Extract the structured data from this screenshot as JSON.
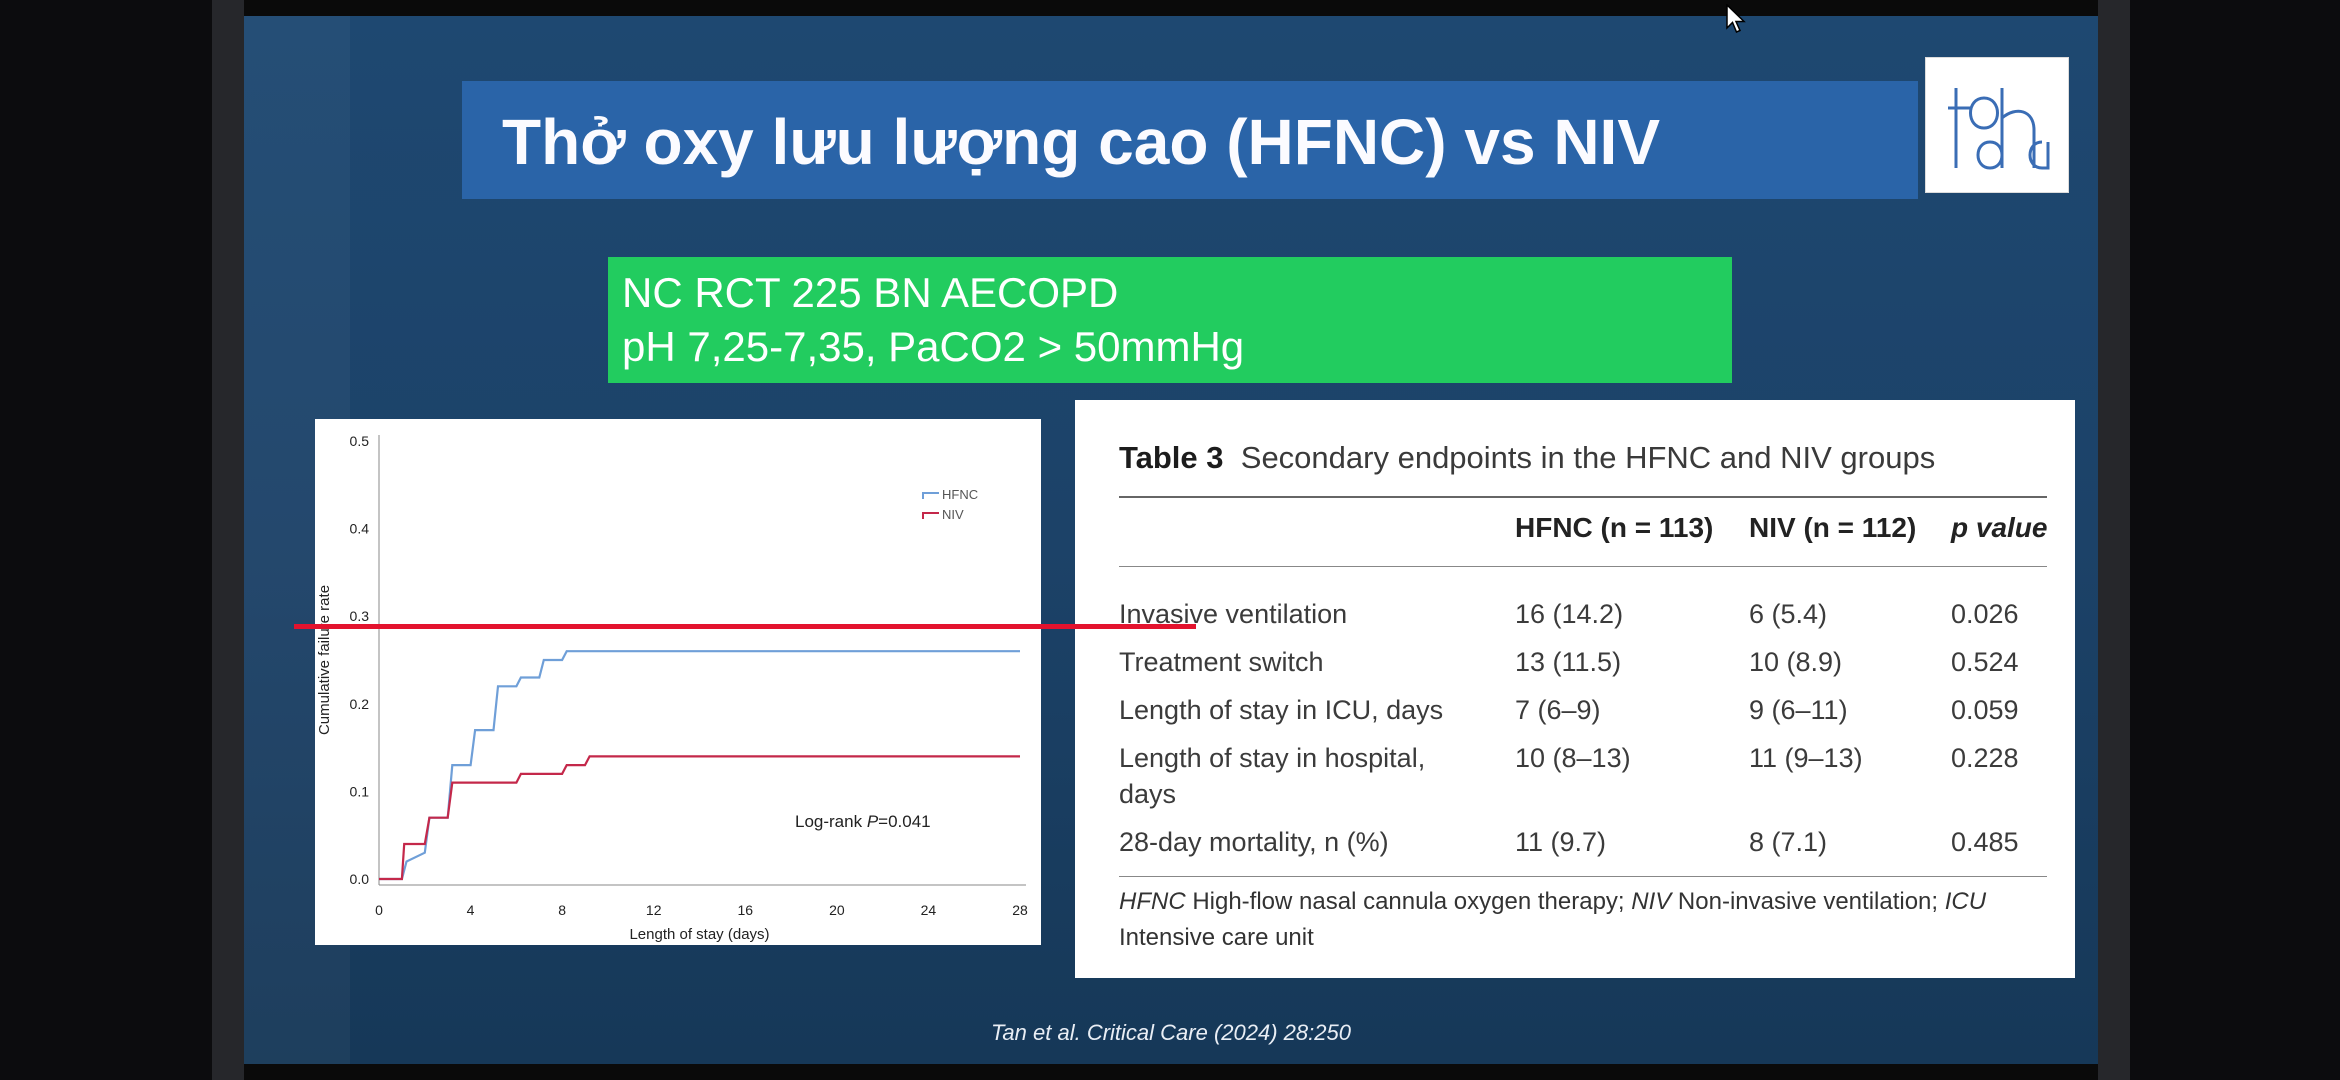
{
  "slide": {
    "title": "Thở oxy lưu lượng cao (HFNC) vs NIV",
    "logo_icon": "hospital-logo-icon",
    "study_box": {
      "line1": "NC RCT 225 BN AECOPD",
      "line2": "pH 7,25-7,35, PaCO2 > 50mmHg"
    },
    "citation": "Tan et al. Critical Care (2024) 28:250"
  },
  "chart_data": {
    "type": "line",
    "xlabel": "Length of stay (days)",
    "ylabel": "Cumulative failure rate",
    "xlim": [
      0,
      28
    ],
    "ylim": [
      0,
      0.5
    ],
    "xticks": [
      "0",
      "4",
      "8",
      "12",
      "16",
      "20",
      "24",
      "28"
    ],
    "yticks": [
      "0.0",
      "0.1",
      "0.2",
      "0.3",
      "0.4",
      "0.5"
    ],
    "legend_position": "top-right",
    "annotation": "Log-rank P=0.041",
    "series": [
      {
        "name": "HFNC",
        "color": "#6f9fd8",
        "step": [
          [
            0,
            0
          ],
          [
            1,
            0
          ],
          [
            1.2,
            0.02
          ],
          [
            2,
            0.03
          ],
          [
            2.2,
            0.07
          ],
          [
            3,
            0.07
          ],
          [
            3.2,
            0.13
          ],
          [
            4,
            0.13
          ],
          [
            4.2,
            0.17
          ],
          [
            5,
            0.17
          ],
          [
            5.2,
            0.22
          ],
          [
            6,
            0.22
          ],
          [
            6.2,
            0.23
          ],
          [
            7,
            0.23
          ],
          [
            7.2,
            0.25
          ],
          [
            8,
            0.25
          ],
          [
            8.2,
            0.26
          ],
          [
            28,
            0.26
          ]
        ]
      },
      {
        "name": "NIV",
        "color": "#c4284a",
        "step": [
          [
            0,
            0
          ],
          [
            1,
            0
          ],
          [
            1.1,
            0.04
          ],
          [
            2,
            0.04
          ],
          [
            2.2,
            0.07
          ],
          [
            3,
            0.07
          ],
          [
            3.2,
            0.11
          ],
          [
            6,
            0.11
          ],
          [
            6.2,
            0.12
          ],
          [
            8,
            0.12
          ],
          [
            8.2,
            0.13
          ],
          [
            9,
            0.13
          ],
          [
            9.2,
            0.14
          ],
          [
            28,
            0.14
          ]
        ]
      }
    ]
  },
  "table": {
    "title_bold": "Table 3",
    "title_rest": "Secondary endpoints in the HFNC and NIV groups",
    "headers": {
      "hfnc": "HFNC (n = 113)",
      "niv": "NIV (n = 112)",
      "p": "p value"
    },
    "rows": [
      {
        "label": "Invasive ventilation",
        "hfnc": "16 (14.2)",
        "niv": "6 (5.4)",
        "p": "0.026"
      },
      {
        "label": "Treatment switch",
        "hfnc": "13 (11.5)",
        "niv": "10 (8.9)",
        "p": "0.524"
      },
      {
        "label": "Length of stay in ICU, days",
        "hfnc": "7 (6–9)",
        "niv": "9 (6–11)",
        "p": "0.059"
      },
      {
        "label": "Length of stay in hospital,",
        "label2": "days",
        "hfnc": "10 (8–13)",
        "niv": "11 (9–13)",
        "p": "0.228"
      },
      {
        "label": "28-day mortality, n (%)",
        "hfnc": "11 (9.7)",
        "niv": "8 (7.1)",
        "p": "0.485"
      }
    ],
    "footnote": {
      "a_abbr": "HFNC",
      "a_text": " High-flow nasal cannula oxygen therapy; ",
      "b_abbr": "NIV",
      "b_text": " Non-invasive ventilation; ",
      "c_abbr": "ICU",
      "c_text": " Intensive care unit"
    },
    "highlight_color": "#e3132e"
  }
}
